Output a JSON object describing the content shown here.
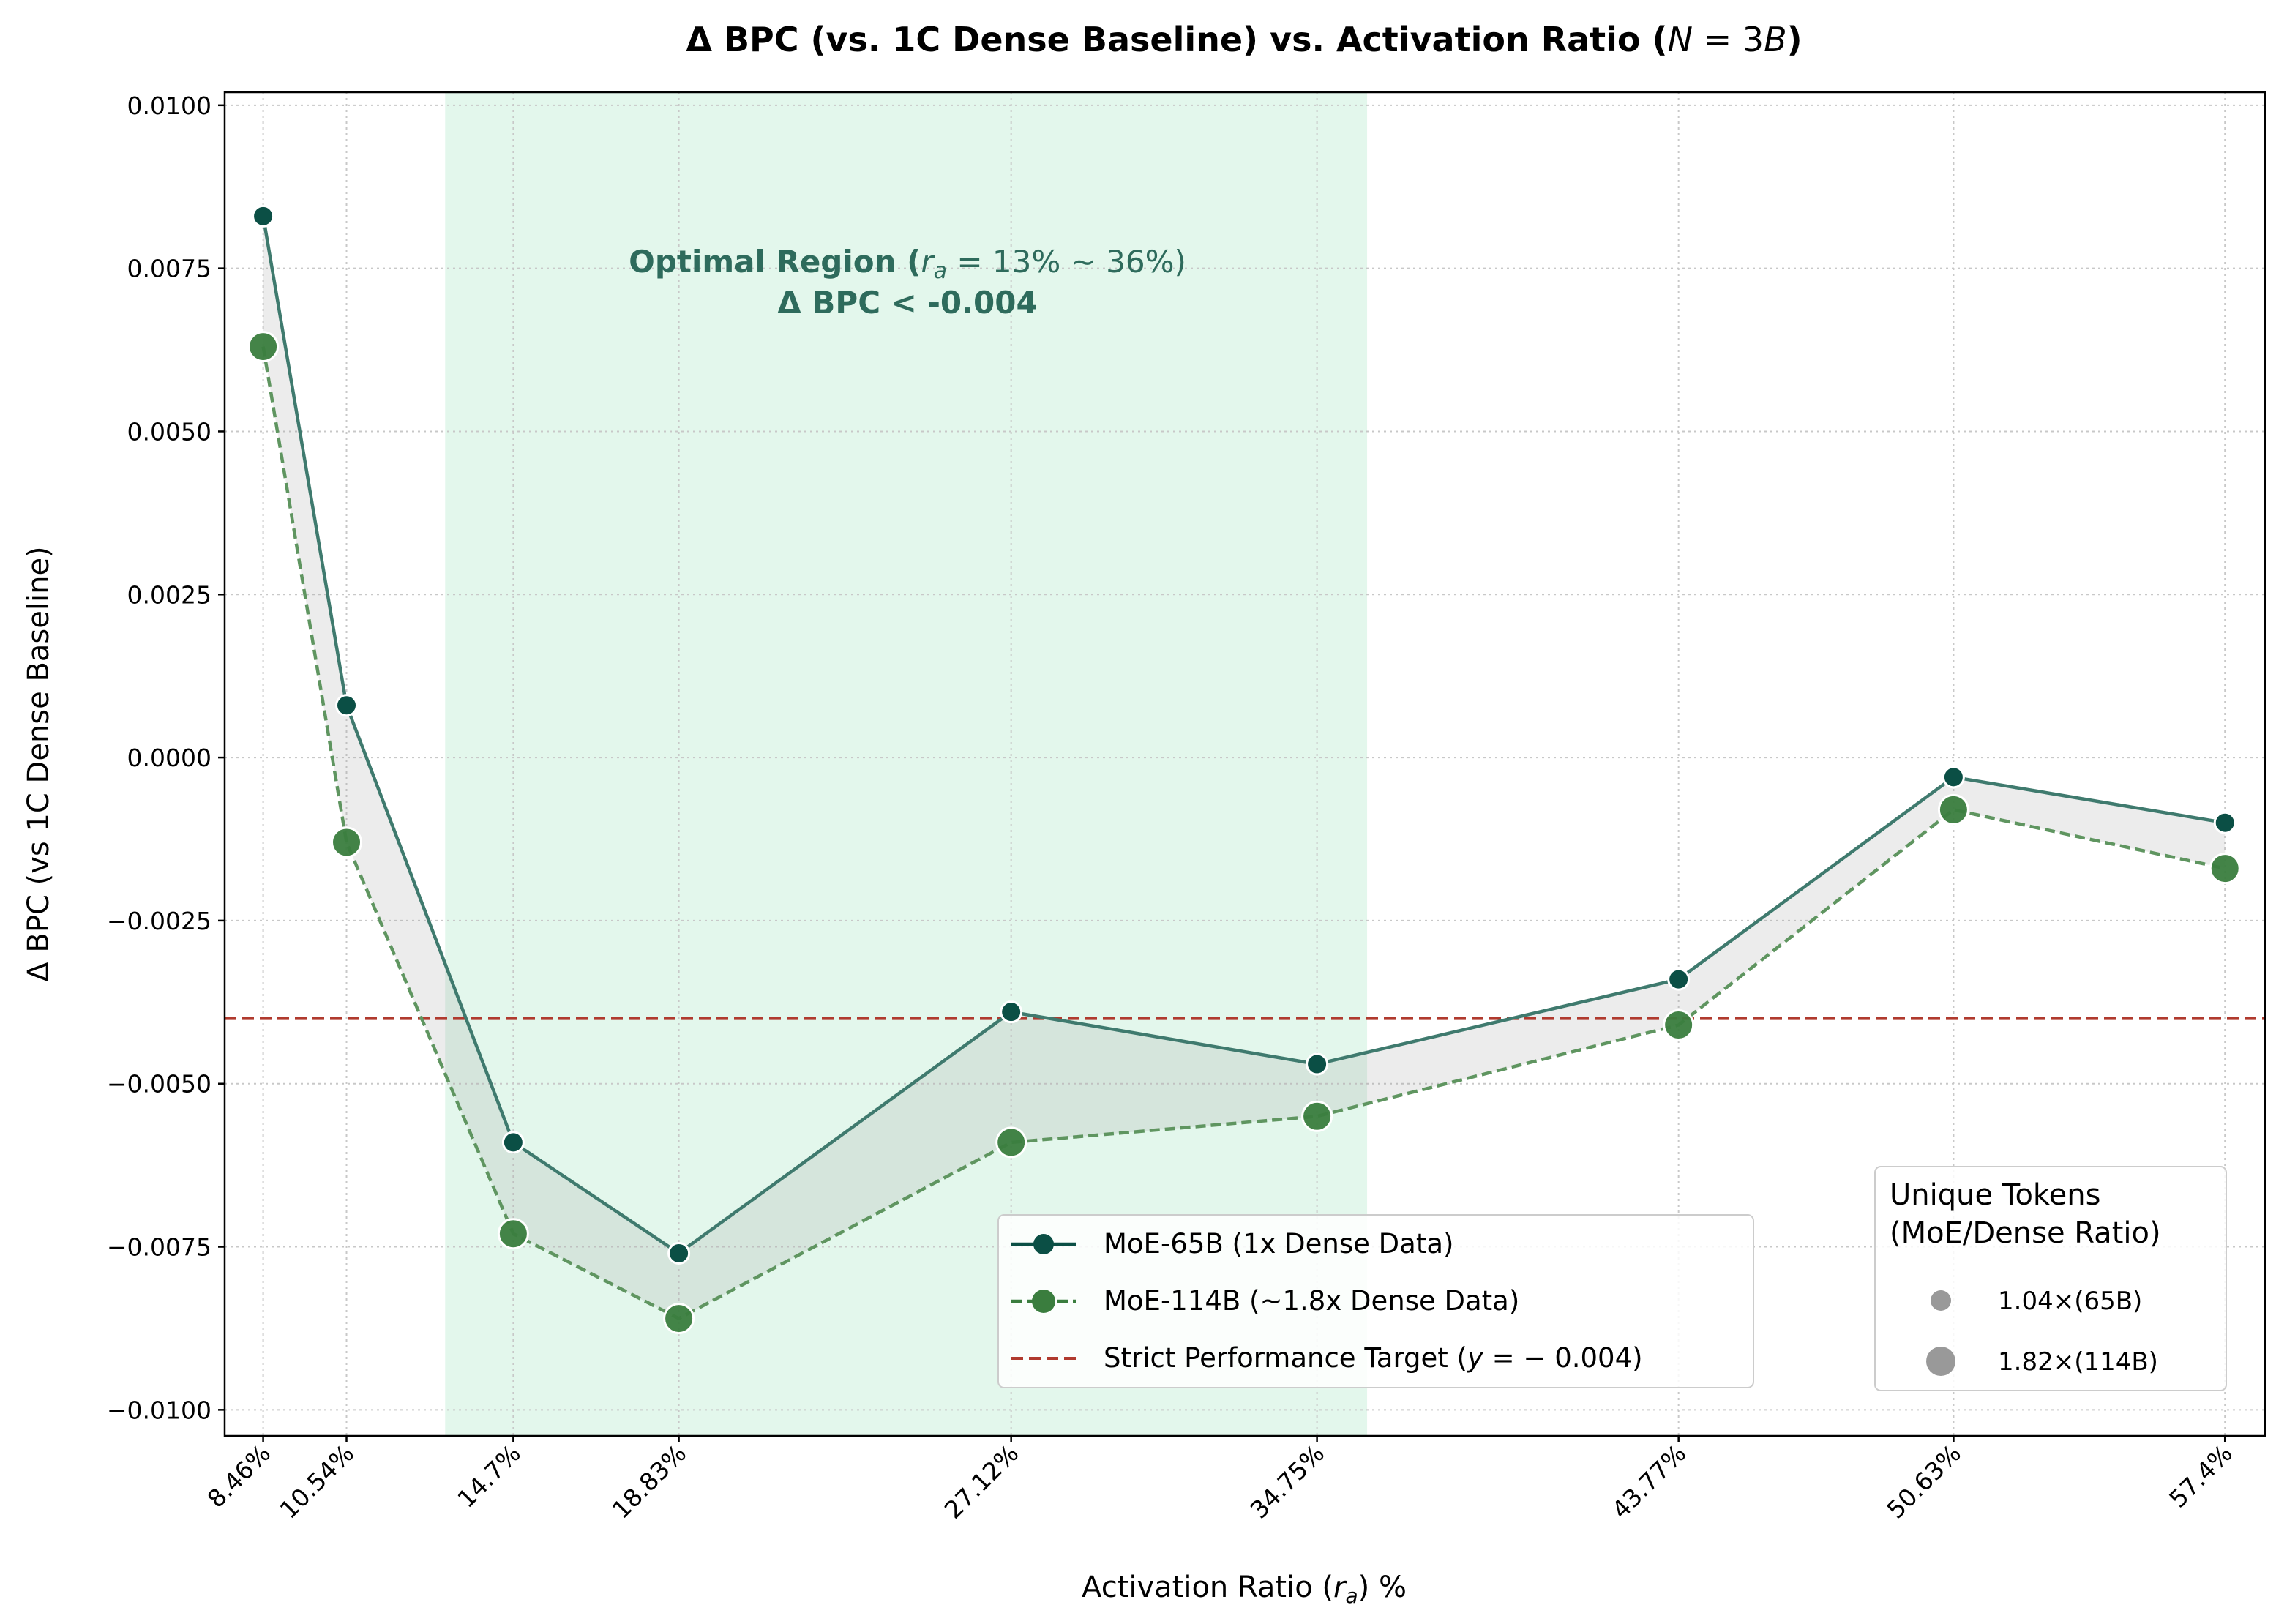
{
  "chart_data": {
    "type": "line",
    "title": "Δ BPC (vs. 1C Dense Baseline) vs. Activation Ratio (N = 3B)",
    "title_parts": {
      "main": "Δ BPC (vs. 1C Dense Baseline) vs. Activation Ratio (",
      "italic": "N",
      "rest": " = 3",
      "italic2": "B",
      "close": ")"
    },
    "xlabel": "Activation Ratio (r_a) %",
    "xlabel_parts": {
      "main": "Activation Ratio (",
      "italic": "r",
      "sub": "a",
      "close": ") %"
    },
    "ylabel": "Δ BPC (vs 1C Dense Baseline)",
    "x": [
      8.46,
      10.54,
      14.7,
      18.83,
      27.12,
      34.75,
      43.77,
      50.63,
      57.4
    ],
    "xtick_labels": [
      "8.46%",
      "10.54%",
      "14.7%",
      "18.83%",
      "27.12%",
      "34.75%",
      "43.77%",
      "50.63%",
      "57.4%"
    ],
    "xlim": [
      7.5,
      58.4
    ],
    "ylim": [
      -0.0104,
      0.0102
    ],
    "yticks": [
      -0.01,
      -0.0075,
      -0.005,
      -0.0025,
      0.0,
      0.0025,
      0.005,
      0.0075,
      0.01
    ],
    "ytick_labels": [
      "−0.0100",
      "−0.0075",
      "−0.0050",
      "−0.0025",
      "0.0000",
      "0.0025",
      "0.0050",
      "0.0075",
      "0.0100"
    ],
    "grid": true,
    "series": [
      {
        "name": "MoE-65B (1x Dense Data)",
        "style": "solid",
        "color": "#0b4f45",
        "line_color": "#3f7a6e",
        "values": [
          0.0083,
          0.0008,
          -0.0059,
          -0.0076,
          -0.0039,
          -0.0047,
          -0.0034,
          -0.0003,
          -0.001
        ]
      },
      {
        "name": "MoE-114B (~1.8x Dense Data)",
        "style": "dashed",
        "color": "#3a7d3e",
        "line_color": "#5f9560",
        "values": [
          0.0063,
          -0.0013,
          -0.0073,
          -0.0086,
          -0.0059,
          -0.0055,
          -0.0041,
          -0.0008,
          -0.0017
        ]
      }
    ],
    "reference_line": {
      "y": -0.004,
      "label": "Strict Performance Target (y = −0.004)",
      "label_parts": {
        "pre": "Strict Performance Target (",
        "italic": "y",
        "post": " = − 0.004)"
      },
      "color": "#b03a2e",
      "style": "dashed"
    },
    "shaded_region": {
      "x_start": 13.0,
      "x_end": 36.0,
      "color": "#e3f7ec",
      "label_line1": "Optimal Region (r_a = 13% ∼ 36%)",
      "label_line1_parts": {
        "bold": "Optimal Region (",
        "italic": "r",
        "sub": "a",
        "rest": " = 13% ∼ 36%)"
      },
      "label_line2": "Δ BPC < -0.004",
      "label_color": "#2e6b5c"
    },
    "fill_between": {
      "color": "#9e9e9e",
      "opacity": 0.2
    },
    "legend": {
      "placement": "lower-center-right",
      "entries": [
        "MoE-65B (1x Dense Data)",
        "MoE-114B (~1.8x Dense Data)",
        "Strict Performance Target (y = −0.004)"
      ]
    },
    "size_legend": {
      "title_line1": "Unique Tokens",
      "title_line2": "(MoE/Dense Ratio)",
      "entries": [
        "1.04×(65B)",
        "1.82×(114B)"
      ],
      "placement": "lower-right"
    }
  }
}
